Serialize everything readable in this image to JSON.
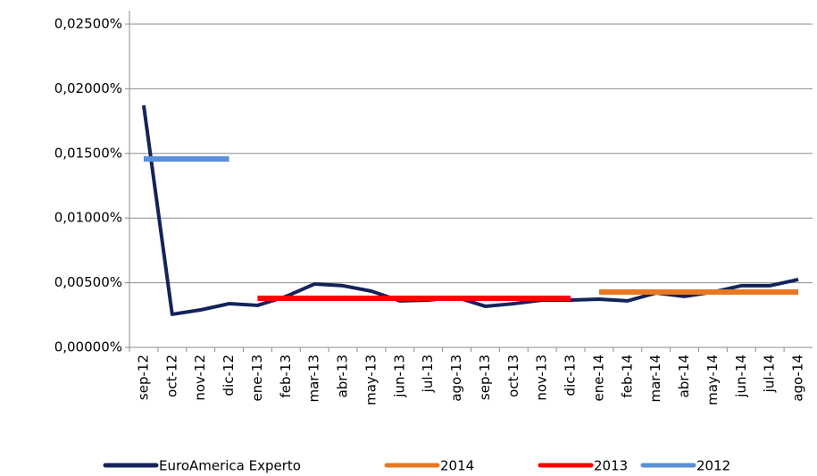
{
  "chart_data": {
    "type": "line",
    "categories": [
      "sep-12",
      "oct-12",
      "nov-12",
      "dic-12",
      "ene-13",
      "feb-13",
      "mar-13",
      "abr-13",
      "may-13",
      "jun-13",
      "jul-13",
      "ago-13",
      "sep-13",
      "oct-13",
      "nov-13",
      "dic-13",
      "ene-14",
      "feb-14",
      "mar-14",
      "abr-14",
      "may-14",
      "jun-14",
      "jul-14",
      "ago-14"
    ],
    "series": [
      {
        "name": "EuroAmerica Experto",
        "color": "#14245a",
        "values": [
          0.01872,
          0.00256,
          0.0029,
          0.00338,
          0.00325,
          0.00394,
          0.0049,
          0.00477,
          0.00435,
          0.0036,
          0.00366,
          0.00387,
          0.00318,
          0.00338,
          0.00366,
          0.00366,
          0.00373,
          0.0036,
          0.00421,
          0.00394,
          0.00428,
          0.00477,
          0.00477,
          0.00525
        ]
      },
      {
        "name": "2014",
        "color": "#e87722",
        "values": [
          null,
          null,
          null,
          null,
          null,
          null,
          null,
          null,
          null,
          null,
          null,
          null,
          null,
          null,
          null,
          null,
          0.00428,
          0.00428,
          0.00428,
          0.00428,
          0.00428,
          0.00428,
          0.00428,
          0.00428
        ]
      },
      {
        "name": "2013",
        "color": "#ff0000",
        "values": [
          null,
          null,
          null,
          null,
          0.0038,
          0.0038,
          0.0038,
          0.0038,
          0.0038,
          0.0038,
          0.0038,
          0.0038,
          0.0038,
          0.0038,
          0.0038,
          0.0038,
          null,
          null,
          null,
          null,
          null,
          null,
          null,
          null
        ]
      },
      {
        "name": "2012",
        "color": "#5b8fd6",
        "values": [
          0.01457,
          0.01457,
          0.01457,
          0.01457,
          null,
          null,
          null,
          null,
          null,
          null,
          null,
          null,
          null,
          null,
          null,
          null,
          null,
          null,
          null,
          null,
          null,
          null,
          null,
          null
        ]
      }
    ],
    "ylim": [
      0,
      0.025
    ],
    "yticks": [
      {
        "value": 0,
        "label": "0,00000%"
      },
      {
        "value": 0.005,
        "label": "0,00500%"
      },
      {
        "value": 0.01,
        "label": "0,01000%"
      },
      {
        "value": 0.015,
        "label": "0,01500%"
      },
      {
        "value": 0.02,
        "label": "0,02000%"
      },
      {
        "value": 0.025,
        "label": "0,02500%"
      }
    ],
    "grid": true,
    "legend": "bottom"
  }
}
